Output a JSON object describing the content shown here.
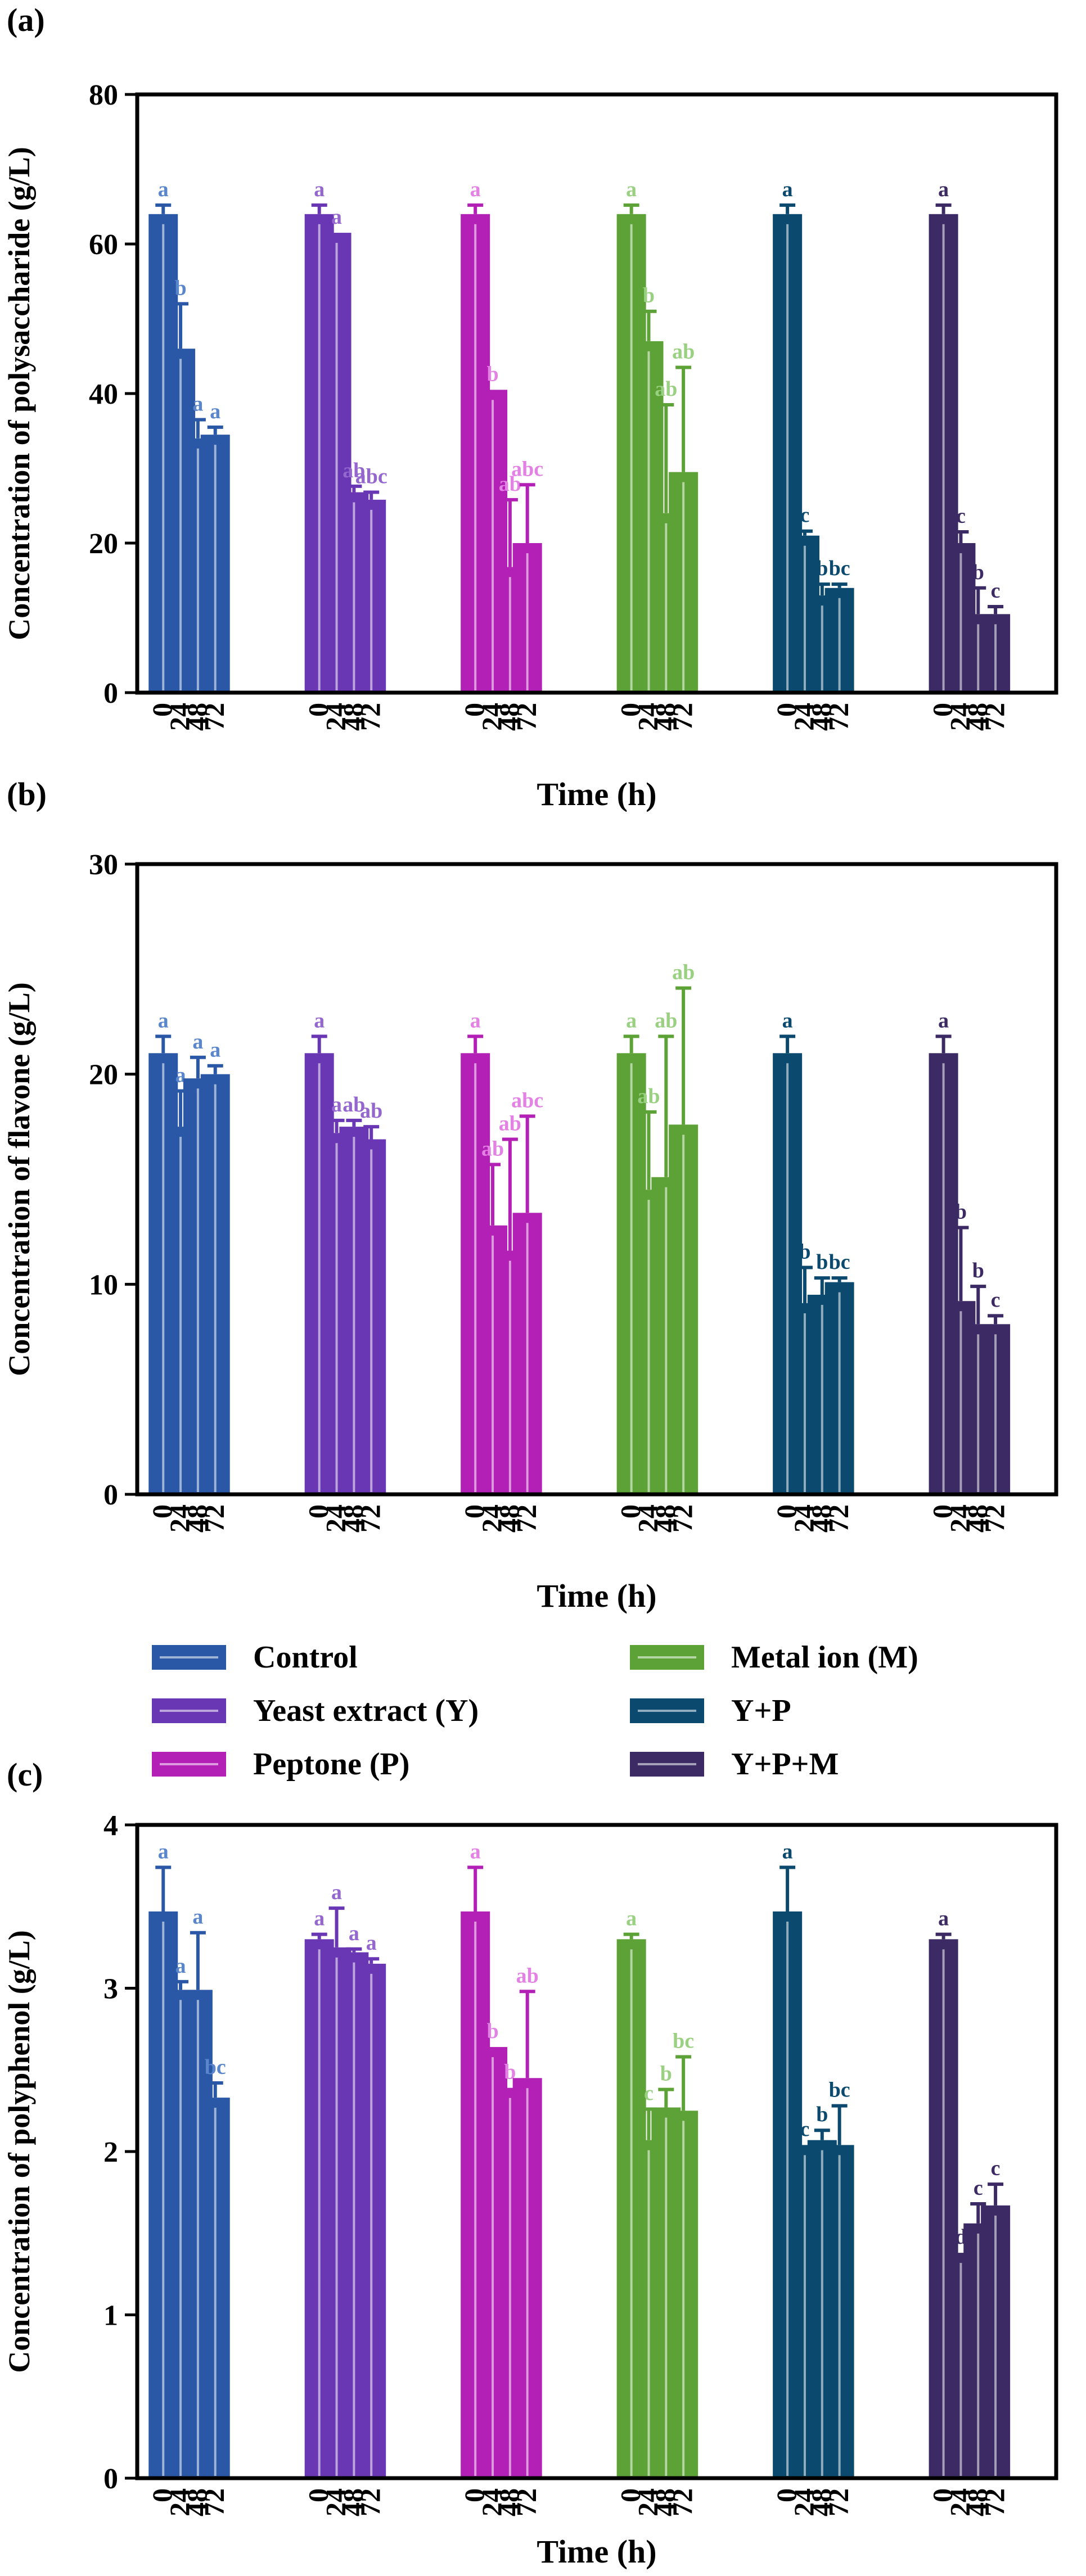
{
  "time_points": [
    "0",
    "24",
    "48",
    "72"
  ],
  "groups": [
    {
      "name": "Control",
      "color": "#2a58a6"
    },
    {
      "name": "Yeast extract (Y)",
      "color": "#6a37b4"
    },
    {
      "name": "Peptone (P)",
      "color": "#b320b5"
    },
    {
      "name": "Metal ion (M)",
      "color": "#5ca236"
    },
    {
      "name": "Y+P",
      "color": "#0b4a6e"
    },
    {
      "name": "Y+P+M",
      "color": "#3b2a63"
    }
  ],
  "label_colors": [
    "#5a86cc",
    "#9467cf",
    "#e382e4",
    "#9ad081",
    "#0b4a6e",
    "#3b2a63"
  ],
  "chart_data": [
    {
      "type": "bar",
      "panel": "(a)",
      "xlabel": "Time (h)",
      "ylabel": "Concentration of polysaccharide (g/L)",
      "ylim": [
        0,
        80
      ],
      "yticks": [
        0,
        20,
        40,
        60,
        80
      ],
      "categories": [
        "0",
        "24",
        "48",
        "72"
      ],
      "series": [
        {
          "name": "Control",
          "values": [
            64,
            46,
            34,
            34.5
          ],
          "errors": [
            1.2,
            6.0,
            2.5,
            1.0
          ],
          "labels": [
            "a",
            "b",
            "a",
            "a"
          ]
        },
        {
          "name": "Yeast extract (Y)",
          "values": [
            64,
            61.5,
            26.8,
            25.8
          ],
          "errors": [
            1.2,
            0,
            0.8,
            1.0
          ],
          "labels": [
            "a",
            "a",
            "ab",
            "abc"
          ]
        },
        {
          "name": "Peptone (P)",
          "values": [
            64,
            40.5,
            16.8,
            20
          ],
          "errors": [
            1.2,
            0,
            9.0,
            7.8
          ],
          "labels": [
            "a",
            "b",
            "ab",
            "abc"
          ]
        },
        {
          "name": "Metal ion (M)",
          "values": [
            64,
            47,
            24,
            29.5
          ],
          "errors": [
            1.2,
            4.0,
            14.5,
            14.0
          ],
          "labels": [
            "a",
            "b",
            "ab",
            "ab"
          ]
        },
        {
          "name": "Y+P",
          "values": [
            64,
            21,
            13,
            14
          ],
          "errors": [
            1.2,
            0.6,
            1.5,
            0.5
          ],
          "labels": [
            "a",
            "c",
            "b",
            "bc"
          ]
        },
        {
          "name": "Y+P+M",
          "values": [
            64,
            20,
            10.5,
            10.5
          ],
          "errors": [
            1.2,
            1.5,
            3.5,
            1.0
          ],
          "labels": [
            "a",
            "c",
            "b",
            "c"
          ]
        }
      ]
    },
    {
      "type": "bar",
      "panel": "(b)",
      "xlabel": "Time (h)",
      "ylabel": "Concentration of  flavone (g/L)",
      "ylim": [
        0,
        30
      ],
      "yticks": [
        0,
        10,
        20,
        30
      ],
      "categories": [
        "0",
        "24",
        "48",
        "72"
      ],
      "series": [
        {
          "name": "Control",
          "values": [
            21,
            17.5,
            19.8,
            20
          ],
          "errors": [
            0.8,
            1.7,
            1.0,
            0.4
          ],
          "labels": [
            "a",
            "a",
            "a",
            "a"
          ]
        },
        {
          "name": "Yeast extract (Y)",
          "values": [
            21,
            17.2,
            17.5,
            16.9
          ],
          "errors": [
            0.8,
            0.6,
            0.3,
            0.6
          ],
          "labels": [
            "a",
            "a",
            "ab",
            "ab"
          ]
        },
        {
          "name": "Peptone (P)",
          "values": [
            21,
            12.8,
            11.6,
            13.4
          ],
          "errors": [
            0.8,
            2.9,
            5.3,
            4.6
          ],
          "labels": [
            "a",
            "ab",
            "ab",
            "abc"
          ]
        },
        {
          "name": "Metal ion (M)",
          "values": [
            21,
            14.5,
            15.1,
            17.6
          ],
          "errors": [
            0.8,
            3.7,
            6.7,
            6.5
          ],
          "labels": [
            "a",
            "ab",
            "ab",
            "ab"
          ]
        },
        {
          "name": "Y+P",
          "values": [
            21,
            9.1,
            9.5,
            10.1
          ],
          "errors": [
            0.8,
            1.7,
            0.8,
            0.2
          ],
          "labels": [
            "a",
            "b",
            "b",
            "bc"
          ]
        },
        {
          "name": "Y+P+M",
          "values": [
            21,
            9.2,
            8.1,
            8.1
          ],
          "errors": [
            0.8,
            3.5,
            1.8,
            0.4
          ],
          "labels": [
            "a",
            "b",
            "b",
            "c"
          ]
        }
      ]
    },
    {
      "type": "bar",
      "panel": "(c)",
      "xlabel": "Time (h)",
      "ylabel": "Concentration of  polyphenol (g/L)",
      "ylim": [
        0,
        4
      ],
      "yticks": [
        0,
        1,
        2,
        3,
        4
      ],
      "categories": [
        "0",
        "24",
        "48",
        "72"
      ],
      "series": [
        {
          "name": "Control",
          "values": [
            3.47,
            2.99,
            2.99,
            2.33
          ],
          "errors": [
            0.27,
            0.05,
            0.35,
            0.09
          ],
          "labels": [
            "a",
            "a",
            "a",
            "bc"
          ]
        },
        {
          "name": "Yeast extract (Y)",
          "values": [
            3.3,
            3.25,
            3.22,
            3.15
          ],
          "errors": [
            0.03,
            0.24,
            0.02,
            0.03
          ],
          "labels": [
            "a",
            "a",
            "a",
            "a"
          ]
        },
        {
          "name": "Peptone (P)",
          "values": [
            3.47,
            2.64,
            2.39,
            2.45
          ],
          "errors": [
            0.27,
            0,
            0,
            0.53
          ],
          "labels": [
            "a",
            "b",
            "b",
            "ab"
          ]
        },
        {
          "name": "Metal ion (M)",
          "values": [
            3.3,
            2.07,
            2.27,
            2.25
          ],
          "errors": [
            0.03,
            0.19,
            0.11,
            0.33
          ],
          "labels": [
            "a",
            "c",
            "b",
            "bc"
          ]
        },
        {
          "name": "Y+P",
          "values": [
            3.47,
            2.04,
            2.07,
            2.04
          ],
          "errors": [
            0.27,
            0,
            0.06,
            0.24
          ],
          "labels": [
            "a",
            "c",
            "b",
            "bc"
          ]
        },
        {
          "name": "Y+P+M",
          "values": [
            3.3,
            1.38,
            1.56,
            1.67
          ],
          "errors": [
            0.03,
            0,
            0.12,
            0.13
          ],
          "labels": [
            "a",
            "d",
            "c",
            "c"
          ]
        }
      ]
    }
  ],
  "legend": {
    "items": [
      "Control",
      "Yeast extract (Y)",
      "Peptone (P)",
      "Metal ion (M)",
      "Y+P",
      "Y+P+M"
    ]
  }
}
